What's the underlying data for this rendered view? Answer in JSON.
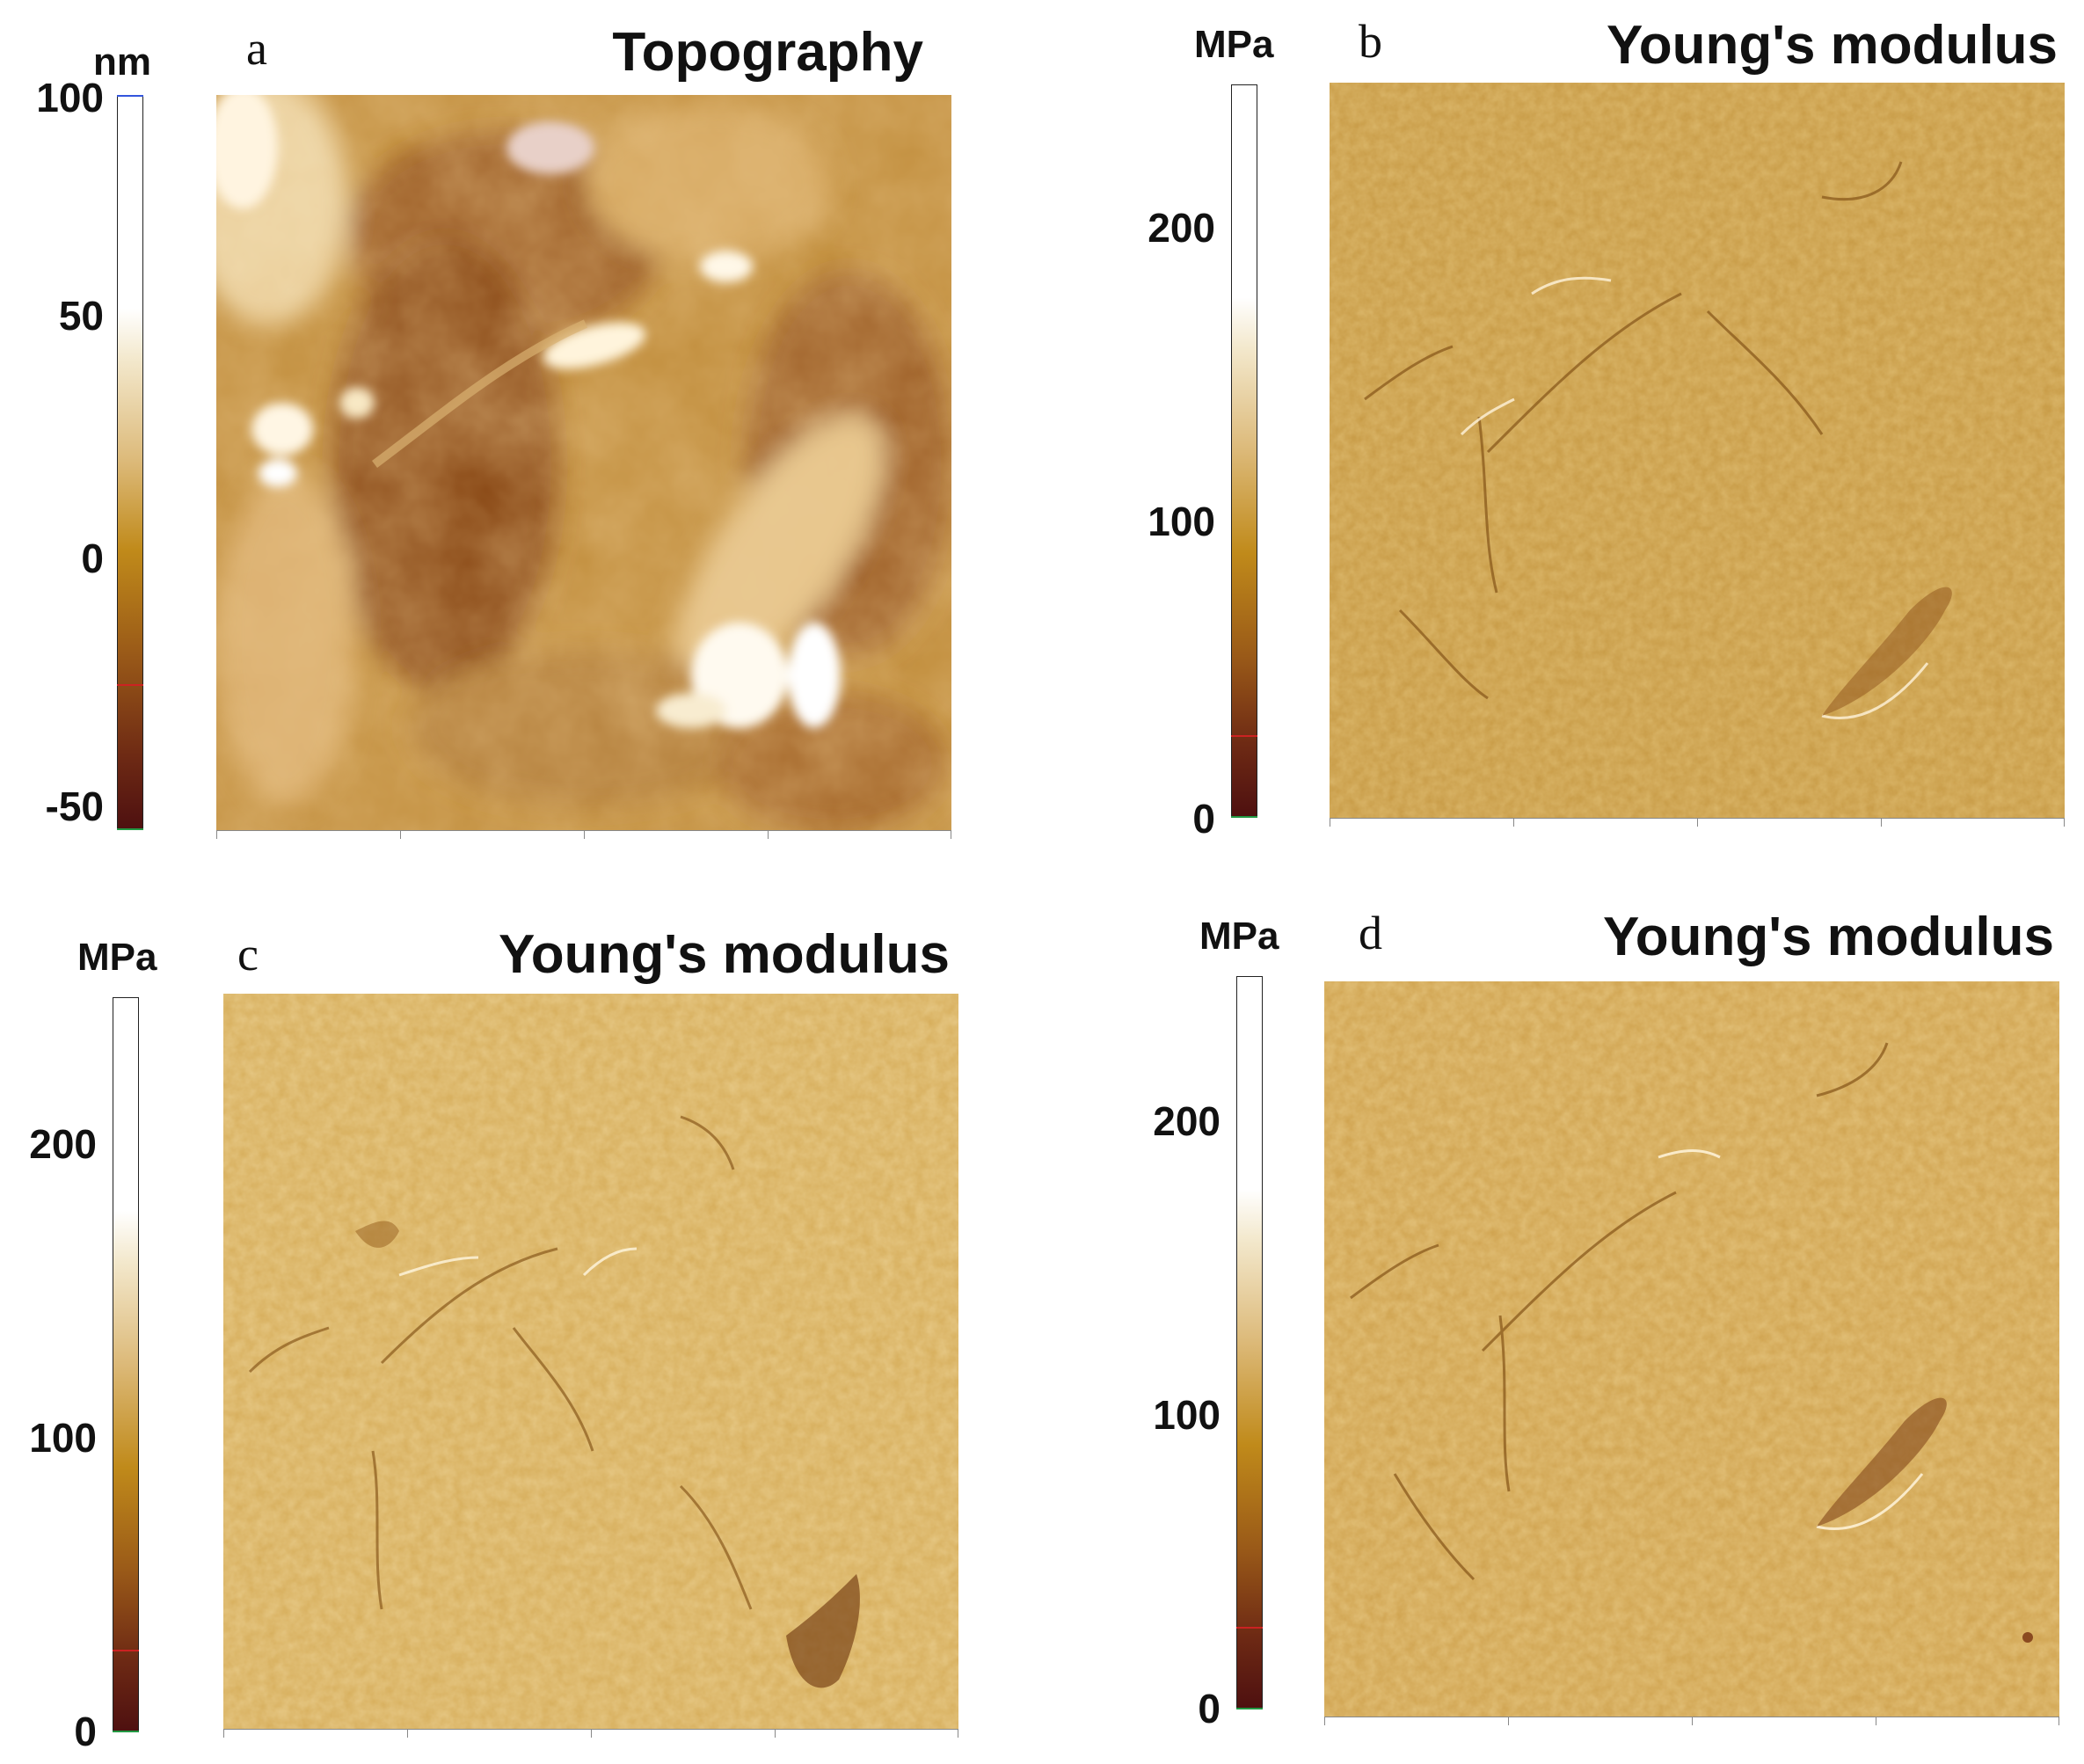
{
  "panels": {
    "a": {
      "letter": "a",
      "title": "Topography",
      "unit": "nm",
      "ticks": [
        "100",
        "50",
        "0",
        "-50"
      ],
      "scale_min": -50,
      "scale_max": 100
    },
    "b": {
      "letter": "b",
      "title": "Young's modulus",
      "unit": "MPa",
      "ticks": [
        "200",
        "100",
        "0"
      ],
      "scale_min": 0,
      "scale_max": 250
    },
    "c": {
      "letter": "c",
      "title": "Young's modulus",
      "unit": "MPa",
      "ticks": [
        "200",
        "100",
        "0"
      ],
      "scale_min": 0,
      "scale_max": 250
    },
    "d": {
      "letter": "d",
      "title": "Young's modulus",
      "unit": "MPa",
      "ticks": [
        "200",
        "100",
        "0"
      ],
      "scale_min": 0,
      "scale_max": 250
    }
  },
  "colors": {
    "colormap_dark": "#5a1a10",
    "colormap_mid": "#c08a1a",
    "colormap_light": "#f5ecd0",
    "colormap_top": "#ffffff",
    "topo_base": "#c08c3a",
    "modulus_base": "#c79a45",
    "modulus_light_base": "#d6ad5a"
  }
}
